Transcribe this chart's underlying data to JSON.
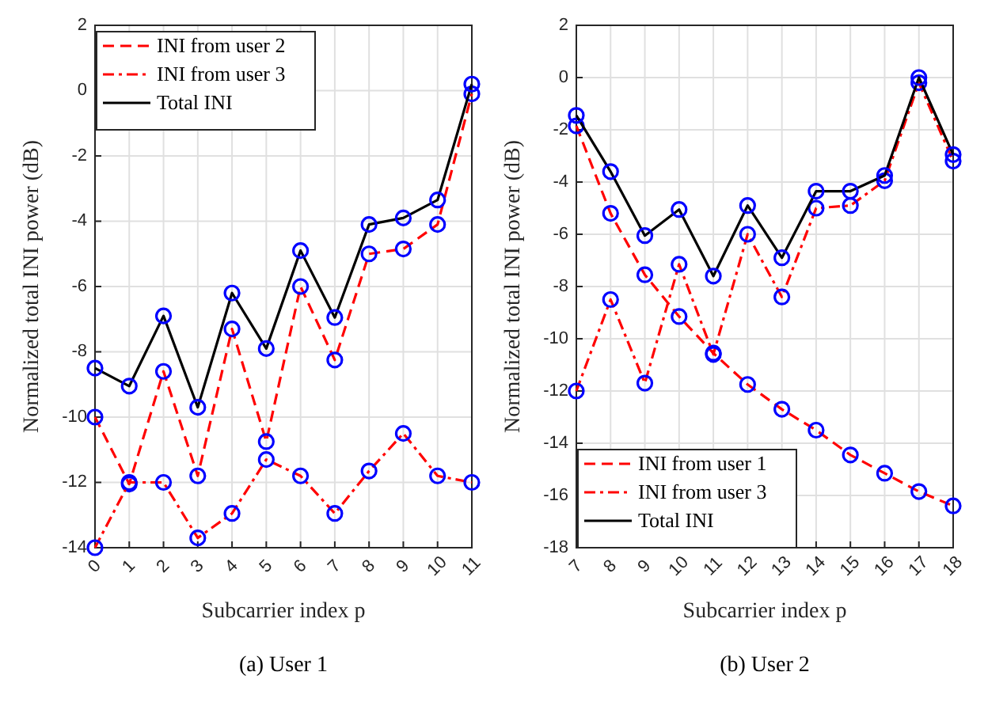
{
  "chart_data": [
    {
      "type": "line",
      "xlabel": "Subcarrier index p",
      "ylabel": "Normalized total INI power (dB)",
      "annotations": [
        "(a) User 1"
      ],
      "x": [
        0,
        1,
        2,
        3,
        4,
        5,
        6,
        7,
        8,
        9,
        10,
        11
      ],
      "xlim": [
        0,
        11
      ],
      "xticks": [
        0,
        1,
        2,
        3,
        4,
        5,
        6,
        7,
        8,
        9,
        10,
        11
      ],
      "ylim": [
        -14,
        2
      ],
      "yticks": [
        -14,
        -12,
        -10,
        -8,
        -6,
        -4,
        -2,
        0,
        2
      ],
      "grid": true,
      "legend": "top left",
      "marker": "circle",
      "series": [
        {
          "name": "INI from user 2",
          "color": "#ff0000",
          "line_style": "dashed",
          "values": [
            -10,
            -12.05,
            -8.6,
            -11.8,
            -7.3,
            -10.75,
            -6.0,
            -8.25,
            -5.0,
            -4.85,
            -4.1,
            -0.1
          ]
        },
        {
          "name": "INI from user 3",
          "color": "#ff0000",
          "line_style": "dashdot",
          "values": [
            -14,
            -12,
            -12,
            -13.7,
            -12.95,
            -11.3,
            -11.8,
            -12.95,
            -11.65,
            -10.5,
            -11.8,
            -12
          ]
        },
        {
          "name": "Total INI",
          "color": "#000000",
          "line_style": "solid",
          "values": [
            -8.5,
            -9.05,
            -6.9,
            -9.7,
            -6.2,
            -7.9,
            -4.9,
            -6.95,
            -4.1,
            -3.9,
            -3.35,
            0.2
          ]
        }
      ]
    },
    {
      "type": "line",
      "xlabel": "Subcarrier index p",
      "ylabel": "Normalized total INI power (dB)",
      "annotations": [
        "(b) User 2"
      ],
      "x": [
        7,
        8,
        9,
        10,
        11,
        12,
        13,
        14,
        15,
        16,
        17,
        18
      ],
      "xlim": [
        7,
        18
      ],
      "xticks": [
        7,
        8,
        9,
        10,
        11,
        12,
        13,
        14,
        15,
        16,
        17,
        18
      ],
      "ylim": [
        -18,
        2
      ],
      "yticks": [
        -18,
        -16,
        -14,
        -12,
        -10,
        -8,
        -6,
        -4,
        -2,
        0,
        2
      ],
      "grid": true,
      "legend": "bottom left",
      "marker": "circle",
      "series": [
        {
          "name": "INI from user 1",
          "color": "#ff0000",
          "line_style": "dashed",
          "values": [
            -1.85,
            -5.2,
            -7.55,
            -9.15,
            -10.55,
            -11.75,
            -12.7,
            -13.5,
            -14.45,
            -15.15,
            -15.85,
            -16.4
          ]
        },
        {
          "name": "INI from user 3",
          "color": "#ff0000",
          "line_style": "dashdot",
          "values": [
            -12,
            -8.5,
            -11.7,
            -7.15,
            -10.6,
            -6.0,
            -8.4,
            -5.0,
            -4.9,
            -3.95,
            -0.2,
            -3.2
          ]
        },
        {
          "name": "Total INI",
          "color": "#000000",
          "line_style": "solid",
          "values": [
            -1.45,
            -3.6,
            -6.05,
            -5.05,
            -7.6,
            -4.9,
            -6.9,
            -4.35,
            -4.35,
            -3.75,
            0,
            -2.95
          ]
        }
      ]
    }
  ]
}
